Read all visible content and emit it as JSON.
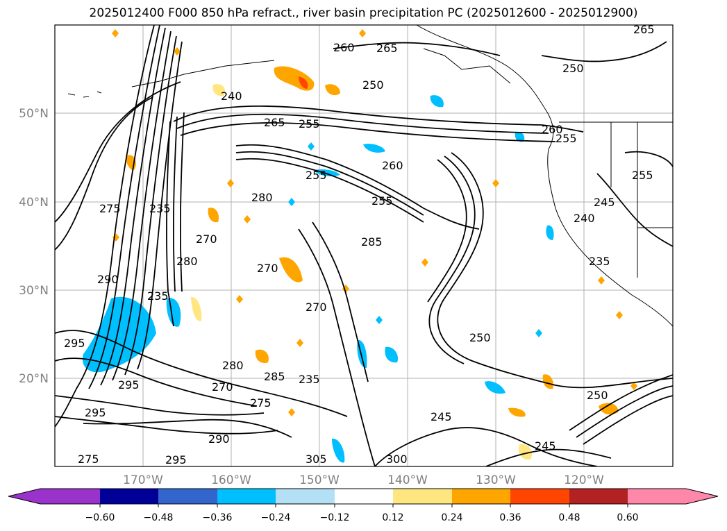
{
  "title": "2025012400 F000 850 hPa refract., river basin precipitation PC (2025012600 - 2025012900)",
  "map": {
    "lat_labels": [
      "50°N",
      "40°N",
      "30°N",
      "20°N"
    ],
    "lon_labels": [
      "170°W",
      "160°W",
      "150°W",
      "140°W",
      "130°W",
      "120°W"
    ]
  },
  "colorbar": {
    "colors": [
      "#9933cc",
      "#000099",
      "#3366cc",
      "#00bfff",
      "#b3e0f5",
      "#ffffff",
      "#ffe680",
      "#ffa500",
      "#ff4500",
      "#b22222",
      "#ff88aa"
    ],
    "tick_labels": [
      "−0.60",
      "−0.48",
      "−0.36",
      "−0.24",
      "−0.12",
      "0.12",
      "0.24",
      "0.36",
      "0.48",
      "0.60"
    ]
  },
  "contour_labels": [
    "265",
    "260",
    "265",
    "250",
    "240",
    "265",
    "255",
    "260",
    "255",
    "255",
    "275",
    "235",
    "280",
    "270",
    "280",
    "285",
    "270",
    "290",
    "235",
    "270",
    "255",
    "245",
    "240",
    "235",
    "250",
    "295",
    "280",
    "285",
    "295",
    "270",
    "275",
    "235",
    "245",
    "250",
    "245",
    "295",
    "290",
    "295",
    "305",
    "300",
    "275",
    "250",
    "260",
    "255"
  ]
}
